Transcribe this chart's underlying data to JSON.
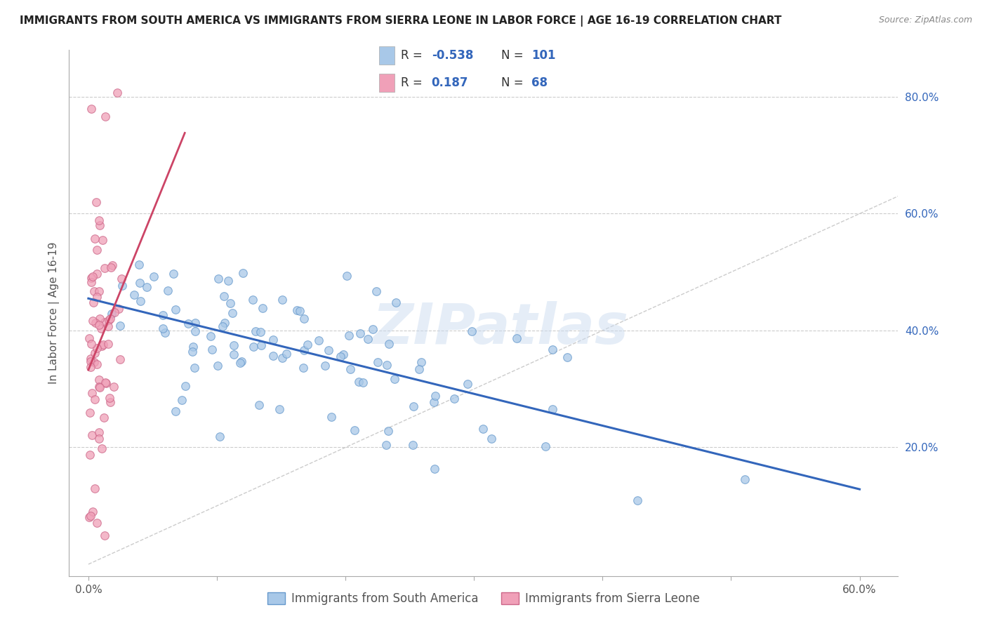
{
  "title": "IMMIGRANTS FROM SOUTH AMERICA VS IMMIGRANTS FROM SIERRA LEONE IN LABOR FORCE | AGE 16-19 CORRELATION CHART",
  "source": "Source: ZipAtlas.com",
  "ylabel": "In Labor Force | Age 16-19",
  "x_ticks": [
    "0.0%",
    "",
    "",
    "",
    "",
    "",
    "60.0%"
  ],
  "x_tick_vals": [
    0.0,
    0.1,
    0.2,
    0.3,
    0.4,
    0.5,
    0.6
  ],
  "y_ticks_right": [
    "20.0%",
    "40.0%",
    "60.0%",
    "80.0%"
  ],
  "y_tick_right_vals": [
    0.2,
    0.4,
    0.6,
    0.8
  ],
  "xlim": [
    -0.015,
    0.63
  ],
  "ylim": [
    -0.02,
    0.88
  ],
  "watermark_text": "ZIPatlas",
  "south_america_color": "#a8c8e8",
  "south_america_edge": "#6699cc",
  "sierra_leone_color": "#f0a0b8",
  "sierra_leone_edge": "#cc6688",
  "trend_south_america_color": "#3366bb",
  "trend_sierra_leone_color": "#cc4466",
  "grid_color": "#cccccc",
  "grid_linestyle": "--",
  "R_south_america": -0.538,
  "N_south_america": 101,
  "R_sierra_leone": 0.187,
  "N_sierra_leone": 68,
  "legend_sa_color": "#a8c8e8",
  "legend_sl_color": "#f0a0b8",
  "legend_text_color": "#3366bb",
  "seed": 42
}
